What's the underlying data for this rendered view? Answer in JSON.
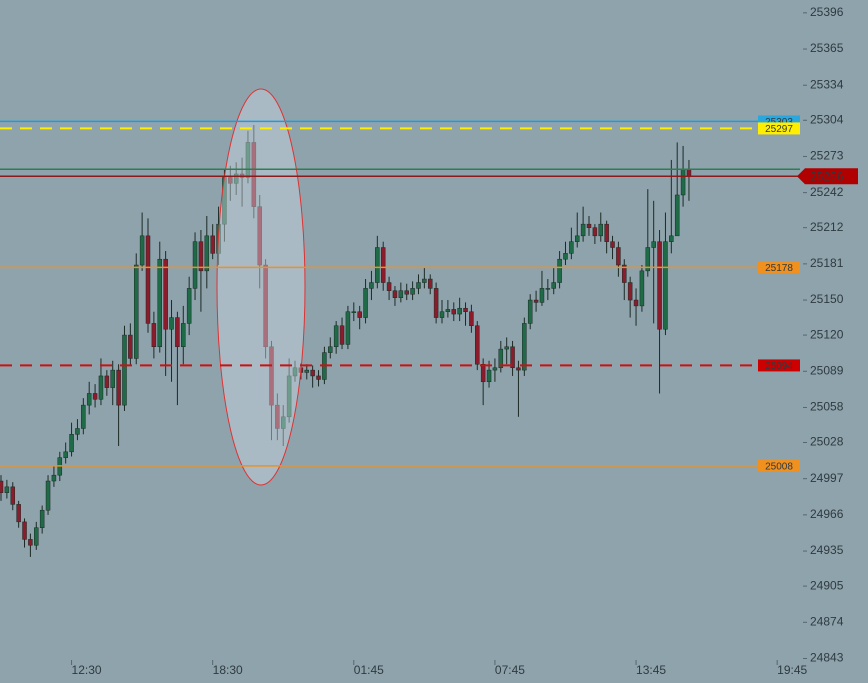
{
  "chart_data": {
    "type": "candlestick",
    "categories": [
      null,
      null,
      null,
      null,
      null,
      null,
      null,
      null,
      null,
      null,
      null,
      null,
      "12:30",
      null,
      null,
      null,
      null,
      null,
      null,
      null,
      null,
      null,
      null,
      null,
      null,
      null,
      null,
      null,
      null,
      null,
      null,
      null,
      null,
      null,
      null,
      null,
      "18:30",
      null,
      null,
      null,
      null,
      null,
      null,
      null,
      null,
      null,
      null,
      null,
      null,
      null,
      null,
      null,
      null,
      null,
      null,
      null,
      null,
      null,
      null,
      null,
      "01:45",
      null,
      null,
      null,
      null,
      null,
      null,
      null,
      null,
      null,
      null,
      null,
      null,
      null,
      null,
      null,
      null,
      null,
      null,
      null,
      null,
      null,
      null,
      null,
      "07:45",
      null,
      null,
      null,
      null,
      null,
      null,
      null,
      null,
      null,
      null,
      null,
      null,
      null,
      null,
      null,
      null,
      null,
      null,
      null,
      null,
      null,
      null,
      null,
      "13:45",
      null,
      null,
      null,
      null,
      null,
      null,
      null,
      null,
      null,
      null,
      null,
      null,
      null,
      null,
      null,
      null,
      null,
      null,
      null,
      null,
      null,
      null,
      null,
      "19:45",
      null,
      null,
      null
    ],
    "open": [
      24995,
      24985,
      24990,
      24975,
      24960,
      24945,
      24940,
      24955,
      24970,
      24995,
      25000,
      25015,
      25020,
      25035,
      25040,
      25060,
      25070,
      25065,
      25085,
      25075,
      25090,
      25060,
      25120,
      25100,
      25180,
      25205,
      25130,
      25110,
      25185,
      25125,
      25135,
      25110,
      25130,
      25160,
      25200,
      25175,
      25205,
      25190,
      25215,
      25255,
      25250,
      25258,
      25255,
      25285,
      25230,
      25180,
      25110,
      25060,
      25040,
      25050,
      25085,
      25092,
      25088,
      25090,
      25085,
      25082,
      25105,
      25110,
      25128,
      25112,
      25140,
      25140,
      25135,
      25160,
      25165,
      25195,
      25165,
      25158,
      25152,
      25158,
      25155,
      25160,
      25165,
      25168,
      25160,
      25135,
      25140,
      25142,
      25138,
      25143,
      25140,
      25128,
      25095,
      25080,
      25090,
      25092,
      25108,
      25110,
      25092,
      25090,
      25130,
      25150,
      25148,
      25160,
      25160,
      25165,
      25185,
      25190,
      25200,
      25205,
      25215,
      25212,
      25205,
      25215,
      25200,
      25195,
      25180,
      25165,
      25150,
      25145,
      25175,
      25195,
      25200,
      25125,
      25200,
      25205,
      25240,
      25262,
      null,
      null,
      null,
      null,
      null,
      null,
      null,
      null,
      null,
      null,
      null,
      null,
      null,
      null,
      null,
      null,
      null,
      null
    ],
    "high": [
      25000,
      24996,
      24994,
      24978,
      24963,
      24950,
      24960,
      24974,
      25000,
      25008,
      25020,
      25028,
      25045,
      25048,
      25066,
      25080,
      25078,
      25100,
      25090,
      25098,
      25095,
      25128,
      25130,
      25190,
      25225,
      25220,
      25140,
      25200,
      25192,
      25150,
      25140,
      25145,
      25170,
      25208,
      25210,
      25222,
      25215,
      25230,
      25262,
      25265,
      25268,
      25272,
      25295,
      25300,
      25240,
      25185,
      25115,
      25070,
      25060,
      25100,
      25098,
      25096,
      25095,
      25094,
      25090,
      25110,
      25118,
      25132,
      25135,
      25145,
      25148,
      25145,
      25168,
      25175,
      25205,
      25200,
      25170,
      25162,
      25165,
      25164,
      25166,
      25172,
      25178,
      25172,
      25165,
      25150,
      25150,
      25148,
      25152,
      25148,
      25146,
      25132,
      25100,
      25098,
      25100,
      25115,
      25118,
      25115,
      25098,
      25135,
      25155,
      25158,
      25175,
      25168,
      25178,
      25192,
      25200,
      25212,
      25225,
      25230,
      25222,
      25215,
      25225,
      25218,
      25205,
      25200,
      25185,
      25170,
      25160,
      25180,
      25245,
      25235,
      25210,
      25225,
      25270,
      25285,
      25282,
      25270,
      null,
      null,
      null,
      null,
      null,
      null,
      null,
      null,
      null,
      null,
      null,
      null,
      null,
      null,
      null,
      null,
      null,
      null
    ],
    "low": [
      24978,
      24980,
      24970,
      24955,
      24938,
      24930,
      24936,
      24950,
      24966,
      24990,
      24995,
      25010,
      25016,
      25030,
      25035,
      25052,
      25058,
      25060,
      25068,
      25060,
      25025,
      25055,
      25094,
      25095,
      25175,
      25122,
      25100,
      25105,
      25085,
      25080,
      25060,
      25095,
      25120,
      25150,
      25140,
      25160,
      25185,
      25180,
      25200,
      25235,
      25240,
      25230,
      25250,
      25220,
      25160,
      25100,
      25030,
      25030,
      25025,
      25045,
      25080,
      25082,
      25082,
      25075,
      25076,
      25078,
      25100,
      25104,
      25108,
      25108,
      25132,
      25125,
      25130,
      25150,
      25160,
      25158,
      25150,
      25145,
      25148,
      25150,
      25150,
      25155,
      25160,
      25155,
      25130,
      25130,
      25135,
      25132,
      25132,
      25128,
      25122,
      25090,
      25060,
      25075,
      25080,
      25088,
      25095,
      25085,
      25050,
      25085,
      25125,
      25140,
      25145,
      25150,
      25155,
      25160,
      25180,
      25185,
      25195,
      25200,
      25205,
      25198,
      25200,
      25190,
      25185,
      25170,
      25150,
      25135,
      25128,
      25140,
      25170,
      25130,
      25070,
      25120,
      25190,
      25210,
      25230,
      25235,
      null,
      null,
      null,
      null,
      null,
      null,
      null,
      null,
      null,
      null,
      null,
      null,
      null,
      null,
      null,
      null,
      null,
      null
    ],
    "close": [
      24985,
      24990,
      24975,
      24960,
      24945,
      24940,
      24955,
      24970,
      24995,
      25000,
      25015,
      25020,
      25035,
      25040,
      25060,
      25070,
      25065,
      25085,
      25075,
      25090,
      25060,
      25120,
      25100,
      25180,
      25205,
      25130,
      25110,
      25185,
      25125,
      25135,
      25110,
      25130,
      25160,
      25200,
      25175,
      25205,
      25190,
      25215,
      25255,
      25250,
      25258,
      25255,
      25285,
      25230,
      25180,
      25110,
      25060,
      25040,
      25050,
      25085,
      25092,
      25088,
      25090,
      25085,
      25082,
      25105,
      25110,
      25128,
      25112,
      25140,
      25140,
      25135,
      25160,
      25165,
      25195,
      25165,
      25158,
      25152,
      25158,
      25155,
      25160,
      25165,
      25168,
      25160,
      25135,
      25140,
      25142,
      25138,
      25143,
      25140,
      25128,
      25095,
      25080,
      25090,
      25092,
      25108,
      25110,
      25092,
      25090,
      25130,
      25150,
      25148,
      25160,
      25160,
      25165,
      25185,
      25190,
      25200,
      25205,
      25215,
      25212,
      25205,
      25215,
      25200,
      25195,
      25180,
      25165,
      25150,
      25145,
      25175,
      25195,
      25200,
      25125,
      25200,
      25205,
      25240,
      25262,
      25256,
      null,
      null,
      null,
      null,
      null,
      null,
      null,
      null,
      null,
      null,
      null,
      null,
      null,
      null,
      null,
      null,
      null,
      null
    ],
    "up_color": "#1f6b47",
    "down_color": "#8a1c2c",
    "ylim": [
      24822,
      25407
    ],
    "yticks": [
      25396,
      25365,
      25334,
      25304,
      25273,
      25242,
      25212,
      25181,
      25150,
      25120,
      25089,
      25058,
      25028,
      24997,
      24966,
      24935,
      24905,
      24874,
      24843
    ],
    "levels": [
      {
        "value": 25303,
        "color": "#1e9be0",
        "dashed": false,
        "tag": true,
        "tag_color": "#29a8e0",
        "tag_text_color": "#1b5b7a"
      },
      {
        "value": 25297,
        "color": "#ffee00",
        "dashed": true,
        "tag": true,
        "tag_color": "#ffee00",
        "tag_text_color": "#000000"
      },
      {
        "value": 25262,
        "color": "#2e7d4f",
        "dashed": false,
        "tag": false
      },
      {
        "value": 25256,
        "color": "#8b1a1a",
        "dashed": false,
        "tag": true,
        "tag_color": "#b00000",
        "tag_text_color": "#ffffff"
      },
      {
        "value": 25178,
        "color": "#f0901e",
        "dashed": false,
        "tag": true,
        "tag_color": "#f0901e",
        "tag_text_color": "#3a2a10"
      },
      {
        "value": 25094,
        "color": "#cc1111",
        "dashed": true,
        "tag": true,
        "tag_color": "#cc0000",
        "tag_text_color": "#ffffff"
      },
      {
        "value": 25008,
        "color": "#f0901e",
        "dashed": false,
        "tag": true,
        "tag_color": "#f0901e",
        "tag_text_color": "#3a2a10"
      }
    ]
  }
}
